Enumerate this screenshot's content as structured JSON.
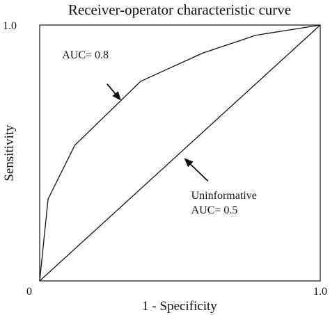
{
  "chart_data": {
    "type": "line",
    "title": "Receiver-operator characteristic curve",
    "xlabel": "1 - Specificity",
    "ylabel": "Sensitivity",
    "xlim": [
      0,
      1
    ],
    "ylim": [
      0,
      1
    ],
    "ticks": {
      "origin": "0",
      "x_max": "1.0",
      "y_max": "1.0"
    },
    "grid": false,
    "legend": "none",
    "series": [
      {
        "name": "AUC= 0.8",
        "x": [
          0.0,
          0.03,
          0.125,
          0.36,
          0.58,
          0.77,
          1.0
        ],
        "y": [
          0.0,
          0.32,
          0.53,
          0.78,
          0.89,
          0.96,
          1.0
        ]
      },
      {
        "name": "Uninformative AUC= 0.5",
        "x": [
          0.0,
          1.0
        ],
        "y": [
          0.0,
          1.0
        ]
      }
    ],
    "annotations": [
      {
        "lines": [
          "AUC= 0.8"
        ],
        "text_at": [
          0.08,
          0.87
        ],
        "arrow_from": [
          0.24,
          0.77
        ],
        "arrow_to": [
          0.29,
          0.705
        ]
      },
      {
        "lines": [
          "Uninformative",
          "AUC= 0.5"
        ],
        "text_at": [
          0.54,
          0.32
        ],
        "arrow_from": [
          0.6,
          0.39
        ],
        "arrow_to": [
          0.515,
          0.48
        ]
      }
    ],
    "colors": {
      "line": "#111111",
      "axes": "#111111"
    }
  }
}
